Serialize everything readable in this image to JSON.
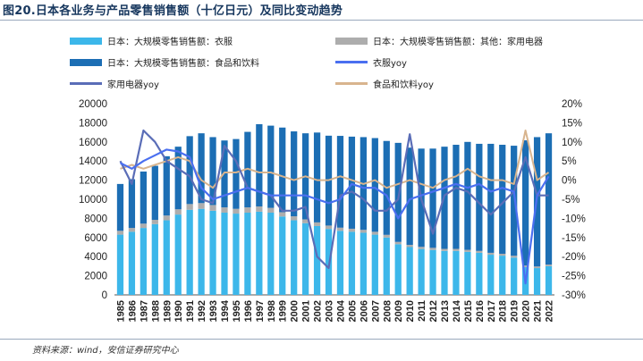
{
  "header": {
    "title": "图20.日本各业务与产品零售销售额（十亿日元）及同比变动趋势"
  },
  "footer": {
    "source": "资料来源：wind，安信证券研究中心"
  },
  "colors": {
    "apparel_bar": "#3cb7ea",
    "other_bar": "#adadad",
    "food_bar": "#1c6eb4",
    "apparel_yoy": "#4a6ff0",
    "appliance_yoy": "#5a6db7",
    "food_yoy": "#d8b48e",
    "axis": "#555555"
  },
  "legend": [
    {
      "label": "日本：大规模零售销售额：衣服",
      "kind": "bar",
      "color": "#3cb7ea"
    },
    {
      "label": "日本：大规模零售销售额：其他：家用电器",
      "kind": "bar",
      "color": "#adadad"
    },
    {
      "label": "日本：大规模零售销售额：食品和饮料",
      "kind": "bar",
      "color": "#1c6eb4"
    },
    {
      "label": "衣服yoy",
      "kind": "line",
      "color": "#4a6ff0"
    },
    {
      "label": "家用电器yoy",
      "kind": "line",
      "color": "#5a6db7"
    },
    {
      "label": "食品和饮料yoy",
      "kind": "line",
      "color": "#d8b48e"
    }
  ],
  "chart_data": {
    "type": "bar",
    "stacked": true,
    "categories": [
      "1985",
      "1986",
      "1987",
      "1988",
      "1989",
      "1990",
      "1991",
      "1992",
      "1993",
      "1994",
      "1995",
      "1996",
      "1997",
      "1998",
      "1999",
      "2000",
      "2001",
      "2002",
      "2003",
      "2004",
      "2005",
      "2006",
      "2007",
      "2008",
      "2009",
      "2010",
      "2011",
      "2012",
      "2013",
      "2014",
      "2015",
      "2016",
      "2017",
      "2018",
      "2019",
      "2020",
      "2021",
      "2022"
    ],
    "left_axis": {
      "min": 0,
      "max": 20000,
      "ticks": [
        0,
        2000,
        4000,
        6000,
        8000,
        10000,
        12000,
        14000,
        16000,
        18000,
        20000
      ]
    },
    "right_axis": {
      "min": -30,
      "max": 20,
      "ticks": [
        "-30%",
        "-25%",
        "-20%",
        "-15%",
        "-10%",
        "-5%",
        "0%",
        "5%",
        "10%",
        "15%",
        "20%"
      ],
      "tick_values": [
        -30,
        -25,
        -20,
        -15,
        -10,
        -5,
        0,
        5,
        10,
        15,
        20
      ]
    },
    "series": [
      {
        "name": "日本：大规模零售销售额：衣服",
        "type": "bar",
        "axis": "left",
        "values": [
          6300,
          6600,
          7000,
          7400,
          7800,
          8400,
          8900,
          9000,
          8800,
          8600,
          8500,
          8600,
          8700,
          8600,
          8200,
          7800,
          7500,
          7200,
          6900,
          6700,
          6600,
          6500,
          6300,
          6000,
          5300,
          5000,
          4800,
          4700,
          4600,
          4600,
          4500,
          4400,
          4200,
          4100,
          3900,
          2900,
          2800,
          3000
        ]
      },
      {
        "name": "日本：大规模零售销售额：其他：家用电器",
        "type": "bar",
        "axis": "left",
        "values": [
          400,
          400,
          450,
          450,
          500,
          550,
          600,
          600,
          600,
          550,
          500,
          550,
          550,
          500,
          450,
          420,
          400,
          380,
          350,
          330,
          320,
          300,
          300,
          280,
          240,
          230,
          220,
          220,
          210,
          210,
          210,
          200,
          200,
          200,
          190,
          170,
          170,
          170
        ]
      },
      {
        "name": "日本：大规模零售销售额：食品和饮料",
        "type": "bar",
        "axis": "left",
        "values": [
          4900,
          5100,
          5450,
          5650,
          6200,
          6550,
          7100,
          7300,
          7100,
          7000,
          7300,
          7900,
          8600,
          8600,
          8850,
          8880,
          9000,
          9400,
          9400,
          9600,
          9630,
          9700,
          9800,
          9820,
          10360,
          10170,
          10280,
          10380,
          10690,
          10890,
          11290,
          11200,
          11400,
          11400,
          11510,
          13100,
          13530,
          13730
        ]
      },
      {
        "name": "衣服yoy",
        "type": "line",
        "axis": "right",
        "values": [
          4.5,
          3,
          5,
          6.5,
          8,
          7.5,
          6,
          -2,
          -5,
          -4,
          -3,
          -2,
          -3,
          -4,
          -4,
          -4,
          -4,
          -5,
          -6,
          -5,
          -1,
          -2,
          -2,
          -4,
          -10,
          -5,
          -4,
          -3,
          -2,
          -1,
          -2,
          -1,
          -3,
          -2,
          -3,
          -27,
          -4,
          1
        ]
      },
      {
        "name": "家用电器yoy",
        "type": "line",
        "axis": "right",
        "values": [
          5,
          -1,
          13,
          10,
          5,
          3,
          1,
          -5,
          -6,
          9,
          5,
          -2,
          -3,
          -4,
          -8,
          -8,
          -7,
          -20,
          -23,
          -4,
          -3,
          -5,
          -8,
          -8,
          -5,
          12,
          -5,
          -14,
          -4,
          -2,
          -3,
          -6,
          -9,
          -6,
          -3,
          6,
          -4,
          -4
        ]
      },
      {
        "name": "食品和饮料yoy",
        "type": "line",
        "axis": "right",
        "values": [
          3,
          4,
          3,
          4,
          5,
          6,
          5,
          0,
          -2,
          2,
          2,
          3,
          2,
          2,
          1,
          0,
          1,
          0,
          0,
          1,
          0,
          -1,
          0,
          -2,
          -1,
          0,
          -1,
          -2,
          0,
          1,
          3,
          1,
          0,
          0,
          -1,
          13,
          0,
          2
        ]
      }
    ]
  }
}
